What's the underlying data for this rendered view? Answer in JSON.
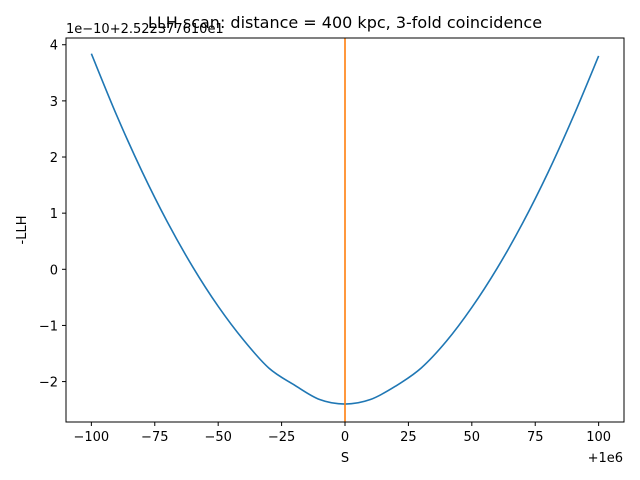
{
  "chart_data": {
    "type": "line",
    "title": "LLH scan: distance = 400 kpc, 3-fold coincidence",
    "xlabel": "S",
    "ylabel": "-LLH",
    "x_offset_label": "+1e6",
    "y_offset_label": "1e−10+2.522377610e1",
    "xlim": [
      -110,
      110
    ],
    "ylim": [
      -2.72,
      4.12
    ],
    "x_ticks": [
      -100,
      -75,
      -50,
      -25,
      0,
      25,
      50,
      75,
      100
    ],
    "x_tick_labels": [
      "−100",
      "−75",
      "−50",
      "−25",
      "0",
      "25",
      "50",
      "75",
      "100"
    ],
    "y_ticks": [
      -2,
      -1,
      0,
      1,
      2,
      3,
      4
    ],
    "y_tick_labels": [
      "−2",
      "−1",
      "0",
      "1",
      "2",
      "3",
      "4"
    ],
    "grid": false,
    "series": [
      {
        "color": "#1f77b4",
        "x": [
          -100,
          -90,
          -80,
          -70,
          -60,
          -50,
          -40,
          -30,
          -20,
          -10,
          0,
          10,
          20,
          30,
          40,
          50,
          60,
          70,
          80,
          90,
          100
        ],
        "y": [
          3.84,
          2.74,
          1.74,
          0.84,
          0.04,
          -0.66,
          -1.26,
          -1.76,
          -2.06,
          -2.32,
          -2.4,
          -2.32,
          -2.08,
          -1.76,
          -1.28,
          -0.68,
          0.02,
          0.82,
          1.72,
          2.72,
          3.8
        ]
      }
    ],
    "vlines": [
      {
        "x": 0,
        "color": "#ff7f0e"
      }
    ]
  }
}
